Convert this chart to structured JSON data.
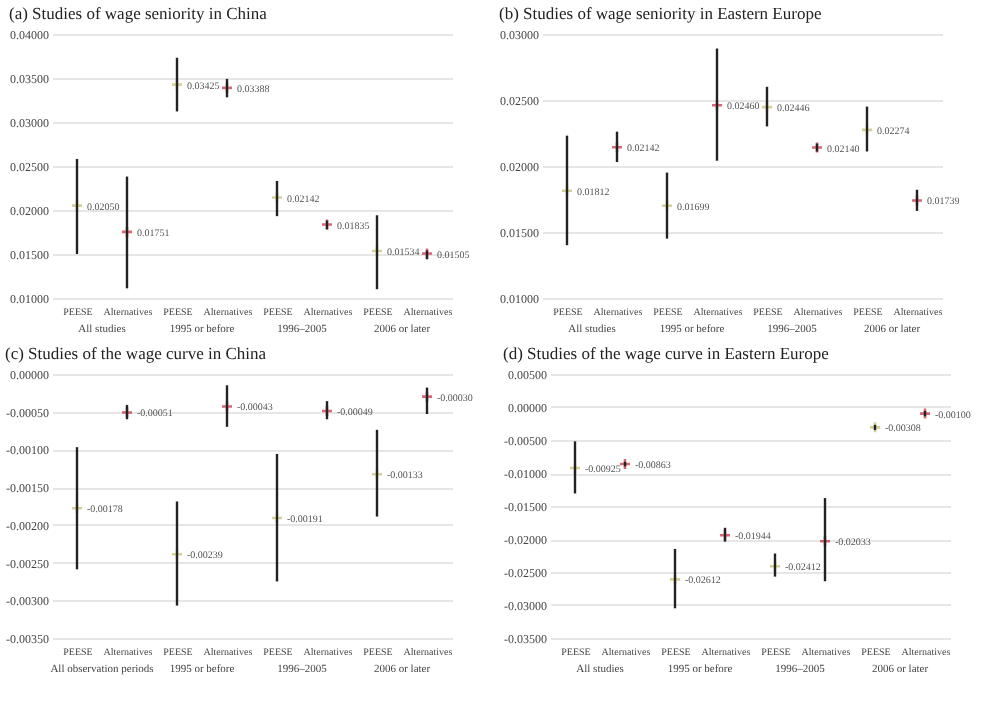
{
  "chart_data": [
    {
      "type": "scatter",
      "title": "(a) Studies of wage seniority in China",
      "categories": [
        "PEESE",
        "Alternatives",
        "PEESE",
        "Alternatives",
        "PEESE",
        "Alternatives",
        "PEESE",
        "Alternatives"
      ],
      "values": [
        0.0205,
        0.01751,
        0.03425,
        0.03388,
        0.02142,
        0.01835,
        0.01534,
        0.01505
      ],
      "value_labels": [
        "0.02050",
        "0.01751",
        "0.03425",
        "0.03388",
        "0.02142",
        "0.01835",
        "0.01534",
        "0.01505"
      ],
      "errors": [
        [
          0.015,
          0.0258
        ],
        [
          0.0111,
          0.0238
        ],
        [
          0.0312,
          0.0373
        ],
        [
          0.0328,
          0.0349
        ],
        [
          0.0193,
          0.0233
        ],
        [
          0.0178,
          0.0188
        ],
        [
          0.011,
          0.0194
        ],
        [
          0.0144,
          0.0154
        ]
      ],
      "colors": [
        "#c2bd6a",
        "#c8283c",
        "#c2bd6a",
        "#c8283c",
        "#c2bd6a",
        "#c8283c",
        "#c2bd6a",
        "#c8283c"
      ],
      "ylim": [
        0.01,
        0.04
      ],
      "yticks": [
        {
          "value": 0.01,
          "label": "0.01000"
        },
        {
          "value": 0.015,
          "label": "0.01500"
        },
        {
          "value": 0.02,
          "label": "0.02000"
        },
        {
          "value": 0.025,
          "label": "0.02500"
        },
        {
          "value": 0.03,
          "label": "0.03000"
        },
        {
          "value": 0.035,
          "label": "0.03500"
        },
        {
          "value": 0.04,
          "label": "0.04000"
        }
      ],
      "annotations": [
        "All studies",
        "1995 or before",
        "1996–2005",
        "2006 or later"
      ],
      "marker": "cross",
      "grid": "y",
      "legend": false
    },
    {
      "type": "scatter",
      "title": "(b) Studies of wage seniority in Eastern Europe",
      "categories": [
        "PEESE",
        "Alternatives",
        "PEESE",
        "Alternatives",
        "PEESE",
        "Alternatives",
        "PEESE",
        "Alternatives"
      ],
      "values": [
        0.01812,
        0.02142,
        0.01699,
        0.0246,
        0.02446,
        0.0214,
        0.02274,
        0.01739
      ],
      "value_labels": [
        "0.01812",
        "0.02142",
        "0.01699",
        "0.02460",
        "0.02446",
        "0.02140",
        "0.02274",
        "0.01739"
      ],
      "errors": [
        [
          0.014,
          0.0223
        ],
        [
          0.0203,
          0.0226
        ],
        [
          0.0145,
          0.0195
        ],
        [
          0.0204,
          0.0289
        ],
        [
          0.023,
          0.026
        ],
        [
          0.0211,
          0.0217
        ],
        [
          0.0211,
          0.0245
        ],
        [
          0.0166,
          0.0182
        ]
      ],
      "colors": [
        "#c2bd6a",
        "#c8283c",
        "#c2bd6a",
        "#c8283c",
        "#c2bd6a",
        "#c8283c",
        "#c2bd6a",
        "#c8283c"
      ],
      "ylim": [
        0.01,
        0.03
      ],
      "yticks": [
        {
          "value": 0.01,
          "label": "0.01000"
        },
        {
          "value": 0.015,
          "label": "0.01500"
        },
        {
          "value": 0.02,
          "label": "0.02000"
        },
        {
          "value": 0.025,
          "label": "0.02500"
        },
        {
          "value": 0.03,
          "label": "0.03000"
        }
      ],
      "annotations": [
        "All studies",
        "1995 or before",
        "1996–2005",
        "2006 or later"
      ],
      "marker": "cross",
      "grid": "y",
      "legend": false
    },
    {
      "type": "scatter",
      "title": "(c) Studies of the wage curve in China",
      "categories": [
        "PEESE",
        "Alternatives",
        "PEESE",
        "Alternatives",
        "PEESE",
        "Alternatives",
        "PEESE",
        "Alternatives"
      ],
      "values": [
        -0.00178,
        -0.00051,
        -0.00239,
        -0.00043,
        -0.00191,
        -0.00049,
        -0.00133,
        -0.0003
      ],
      "value_labels": [
        "-0.00178",
        "-0.00051",
        "-0.00239",
        "-0.00043",
        "-0.00191",
        "-0.00049",
        "-0.00133",
        "-0.00030"
      ],
      "errors": [
        [
          -0.00259,
          -0.00097
        ],
        [
          -0.0006,
          -0.00041
        ],
        [
          -0.00307,
          -0.00169
        ],
        [
          -0.0007,
          -0.00015
        ],
        [
          -0.00275,
          -0.00106
        ],
        [
          -0.0006,
          -0.00036
        ],
        [
          -0.00189,
          -0.00074
        ],
        [
          -0.00053,
          -0.00018
        ]
      ],
      "colors": [
        "#c2bd6a",
        "#c8283c",
        "#c2bd6a",
        "#c8283c",
        "#c2bd6a",
        "#c8283c",
        "#c2bd6a",
        "#c8283c"
      ],
      "ylim": [
        -0.0035,
        0
      ],
      "yticks": [
        {
          "value": -0.0035,
          "label": "-0.00350"
        },
        {
          "value": -0.003,
          "label": "-0.00300"
        },
        {
          "value": -0.0025,
          "label": "-0.00250"
        },
        {
          "value": -0.002,
          "label": "-0.00200"
        },
        {
          "value": -0.0015,
          "label": "-0.00150"
        },
        {
          "value": -0.001,
          "label": "-0.00100"
        },
        {
          "value": -0.0005,
          "label": "-0.00050"
        },
        {
          "value": 0,
          "label": "0.00000"
        }
      ],
      "annotations": [
        "All observation periods",
        "1995 or before",
        "1996–2005",
        "2006 or later"
      ],
      "marker": "cross",
      "grid": "y",
      "legend": false
    },
    {
      "type": "scatter",
      "title": "(d) Studies of the wage curve in Eastern Europe",
      "categories": [
        "PEESE",
        "Alternatives",
        "PEESE",
        "Alternatives",
        "PEESE",
        "Alternatives",
        "PEESE",
        "Alternatives"
      ],
      "values": [
        -0.00925,
        -0.00863,
        -0.02612,
        -0.01944,
        -0.02412,
        -0.02033,
        -0.00308,
        -0.001
      ],
      "value_labels": [
        "-0.00925",
        "-0.00863",
        "-0.02612",
        "-0.01944",
        "-0.02412",
        "-0.02033",
        "-0.00308",
        "-0.00100"
      ],
      "errors": [
        [
          -0.0131,
          -0.0052
        ],
        [
          -0.009,
          -0.0083
        ],
        [
          -0.0305,
          -0.0215
        ],
        [
          -0.0204,
          -0.0183
        ],
        [
          -0.0257,
          -0.0222
        ],
        [
          -0.0264,
          -0.0138
        ],
        [
          -0.0035,
          -0.0027
        ],
        [
          -0.0014,
          -0.0006
        ]
      ],
      "colors": [
        "#c2bd6a",
        "#c8283c",
        "#c2bd6a",
        "#c8283c",
        "#c2bd6a",
        "#c8283c",
        "#c2bd6a",
        "#c8283c"
      ],
      "ylim": [
        -0.035,
        0.005
      ],
      "yticks": [
        {
          "value": -0.035,
          "label": "-0.03500"
        },
        {
          "value": -0.03,
          "label": "-0.03000"
        },
        {
          "value": -0.025,
          "label": "-0.02500"
        },
        {
          "value": -0.02,
          "label": "-0.02000"
        },
        {
          "value": -0.015,
          "label": "-0.01500"
        },
        {
          "value": -0.01,
          "label": "-0.01000"
        },
        {
          "value": -0.005,
          "label": "-0.00500"
        },
        {
          "value": 0,
          "label": "0.00000"
        },
        {
          "value": 0.005,
          "label": "0.00500"
        }
      ],
      "annotations": [
        "All studies",
        "1995 or before",
        "1996–2005",
        "2006 or later"
      ],
      "marker": "cross",
      "grid": "y",
      "legend": false
    }
  ]
}
